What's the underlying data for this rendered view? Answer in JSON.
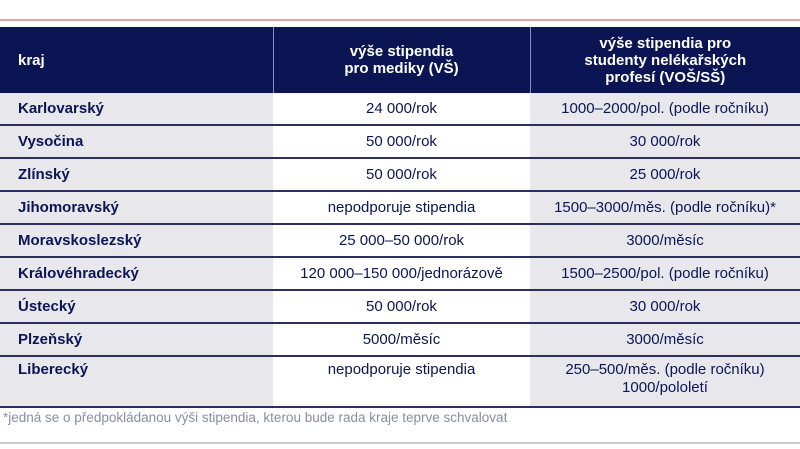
{
  "headers": [
    "kraj",
    "výše stipendia\npro mediky (VŠ)",
    "výše stipendia pro\nstudenty nelékařských\nprofesí (VOŠ/SŠ)"
  ],
  "rows": [
    [
      "Karlovarský",
      "24 000/rok",
      "1000–2000/pol. (podle ročníku)"
    ],
    [
      "Vysočina",
      "50 000/rok",
      "30 000/rok"
    ],
    [
      "Zlínský",
      "50 000/rok",
      "25 000/rok"
    ],
    [
      "Jihomoravský",
      "nepodporuje stipendia",
      "1500–3000/měs. (podle ročníku)*"
    ],
    [
      "Moravskoslezský",
      "25 000–50 000/rok",
      "3000/měsíc"
    ],
    [
      "Královéhradecký",
      "120 000–150 000/jednorázově",
      "1500–2500/pol. (podle ročníku)"
    ],
    [
      "Ústecký",
      "50 000/rok",
      "30 000/rok"
    ],
    [
      "Plzeňský",
      "5000/měsíc",
      "3000/měsíc"
    ],
    [
      "Liberecký",
      "nepodporuje stipendia",
      "250–500/měs. (podle ročníku)\n1000/pololetí"
    ]
  ],
  "footnote": "*jedná se o předpokládanou výši stipendia, kterou bude rada kraje teprve schvalovat"
}
